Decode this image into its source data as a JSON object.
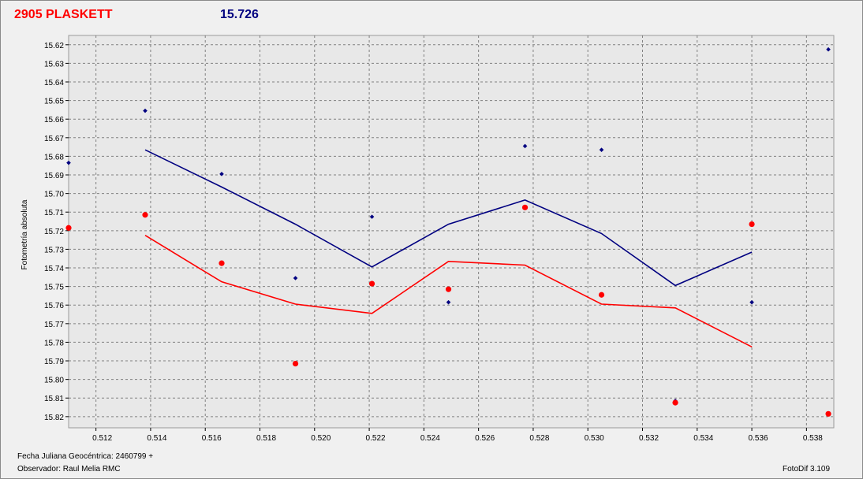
{
  "header": {
    "title": "2905 PLASKETT",
    "magnitude": "15.726"
  },
  "footer": {
    "jd_label": "Fecha Juliana Geocéntrica: 2460799 +",
    "observer_label": "Observador: Raul Melia RMC",
    "software": "FotoDif 3.109"
  },
  "colors": {
    "red": "#ff0000",
    "blue": "#000080",
    "grid": "#808080",
    "plot_bg": "#e8e8e8"
  },
  "chart_data": {
    "type": "scatter",
    "title": "2905 PLASKETT",
    "xlabel": "",
    "ylabel": "Fotometría absoluta",
    "xlim": [
      0.511,
      0.539
    ],
    "ylim": [
      15.615,
      15.826
    ],
    "y_inverted": true,
    "grid": true,
    "x_ticks": [
      "0.512",
      "0.514",
      "0.516",
      "0.518",
      "0.520",
      "0.522",
      "0.524",
      "0.526",
      "0.528",
      "0.530",
      "0.532",
      "0.534",
      "0.536",
      "0.538"
    ],
    "x_tick_values": [
      0.512,
      0.514,
      0.516,
      0.518,
      0.52,
      0.522,
      0.524,
      0.526,
      0.528,
      0.53,
      0.532,
      0.534,
      0.536,
      0.538
    ],
    "y_ticks": [
      "15.62",
      "15.63",
      "15.64",
      "15.65",
      "15.66",
      "15.67",
      "15.68",
      "15.69",
      "15.70",
      "15.71",
      "15.72",
      "15.73",
      "15.74",
      "15.75",
      "15.76",
      "15.77",
      "15.78",
      "15.79",
      "15.80",
      "15.81",
      "15.82"
    ],
    "y_tick_values": [
      15.62,
      15.63,
      15.64,
      15.65,
      15.66,
      15.67,
      15.68,
      15.69,
      15.7,
      15.71,
      15.72,
      15.73,
      15.74,
      15.75,
      15.76,
      15.77,
      15.78,
      15.79,
      15.8,
      15.81,
      15.82
    ],
    "series": [
      {
        "color": "#000080",
        "kind": "points",
        "points": [
          {
            "x": 0.511,
            "y": 15.6835
          },
          {
            "x": 0.5138,
            "y": 15.6555
          },
          {
            "x": 0.5166,
            "y": 15.6895
          },
          {
            "x": 0.5193,
            "y": 15.7455
          },
          {
            "x": 0.5221,
            "y": 15.7125
          },
          {
            "x": 0.5249,
            "y": 15.7585
          },
          {
            "x": 0.5277,
            "y": 15.6745
          },
          {
            "x": 0.5305,
            "y": 15.6765
          },
          {
            "x": 0.5332,
            "y": 15.8115
          },
          {
            "x": 0.536,
            "y": 15.7585
          },
          {
            "x": 0.5388,
            "y": 15.6225
          }
        ]
      },
      {
        "color": "#000080",
        "kind": "line",
        "points": [
          {
            "x": 0.5138,
            "y": 15.6765
          },
          {
            "x": 0.5166,
            "y": 15.6965
          },
          {
            "x": 0.5193,
            "y": 15.7165
          },
          {
            "x": 0.5221,
            "y": 15.7395
          },
          {
            "x": 0.5249,
            "y": 15.7165
          },
          {
            "x": 0.5277,
            "y": 15.7035
          },
          {
            "x": 0.5305,
            "y": 15.7215
          },
          {
            "x": 0.5332,
            "y": 15.7495
          },
          {
            "x": 0.536,
            "y": 15.7315
          }
        ]
      },
      {
        "color": "#ff0000",
        "kind": "points",
        "points": [
          {
            "x": 0.511,
            "y": 15.7185
          },
          {
            "x": 0.5138,
            "y": 15.7115
          },
          {
            "x": 0.5166,
            "y": 15.7375
          },
          {
            "x": 0.5193,
            "y": 15.7915
          },
          {
            "x": 0.5221,
            "y": 15.7485
          },
          {
            "x": 0.5249,
            "y": 15.7515
          },
          {
            "x": 0.5277,
            "y": 15.7075
          },
          {
            "x": 0.5305,
            "y": 15.7545
          },
          {
            "x": 0.5332,
            "y": 15.8125
          },
          {
            "x": 0.536,
            "y": 15.7165
          },
          {
            "x": 0.5388,
            "y": 15.8185
          }
        ]
      },
      {
        "color": "#ff0000",
        "kind": "line",
        "points": [
          {
            "x": 0.5138,
            "y": 15.7225
          },
          {
            "x": 0.5166,
            "y": 15.7475
          },
          {
            "x": 0.5193,
            "y": 15.7595
          },
          {
            "x": 0.5221,
            "y": 15.7645
          },
          {
            "x": 0.5249,
            "y": 15.7365
          },
          {
            "x": 0.5277,
            "y": 15.7385
          },
          {
            "x": 0.5305,
            "y": 15.7595
          },
          {
            "x": 0.5332,
            "y": 15.7615
          },
          {
            "x": 0.536,
            "y": 15.7825
          }
        ]
      }
    ]
  }
}
